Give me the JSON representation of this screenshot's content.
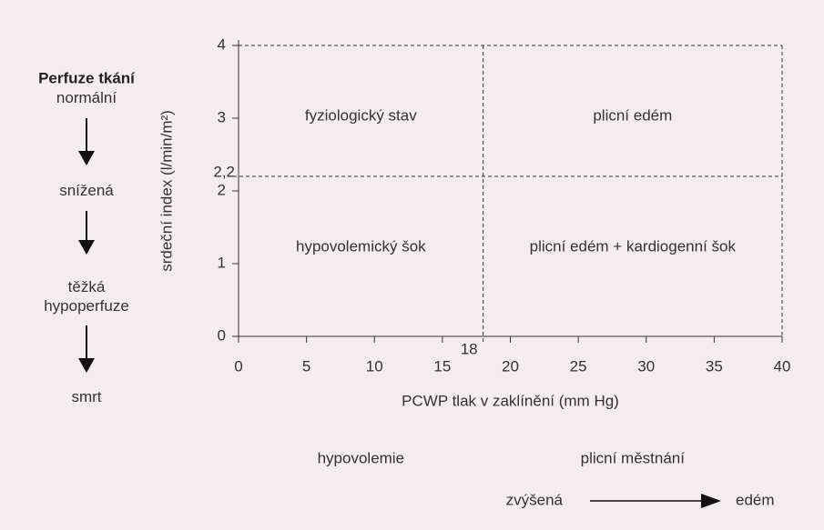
{
  "chart_data": {
    "type": "quadrant",
    "xlabel": "PCWP tlak v zaklínění (mm Hg)",
    "ylabel": "srdeční index (l/min/m²)",
    "xlim": [
      0,
      40
    ],
    "ylim": [
      0,
      4
    ],
    "xticks": [
      0,
      5,
      10,
      15,
      20,
      25,
      30,
      35,
      40
    ],
    "yticks": [
      0,
      1,
      2,
      3,
      4
    ],
    "thresholds": {
      "x": {
        "value": 18,
        "label": "18"
      },
      "y": {
        "value": 2.2,
        "label": "2,2"
      }
    },
    "quadrants": {
      "upper_left": "fyziologický stav",
      "upper_right": "plicní edém",
      "lower_left": "hypovolemický šok",
      "lower_right": "plicní edém + kardiogenní šok"
    },
    "x_groups": [
      "hypovolemie",
      "plicní městnání"
    ],
    "pressure_scale": {
      "from": "zvýšená",
      "to": "edém"
    },
    "perfusion": {
      "title": "Perfuze tkání",
      "levels": [
        "normální",
        "snížená",
        "těžká hypoperfuze",
        "smrt"
      ]
    }
  }
}
